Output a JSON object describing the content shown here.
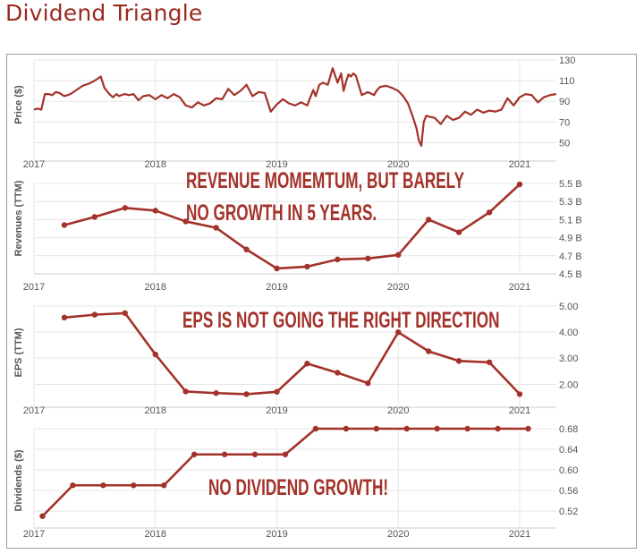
{
  "title": "Dividend Triangle",
  "colors": {
    "line": "#a3322a",
    "grid": "#e6e6e6",
    "axis": "#9a9a9a",
    "text": "#555555",
    "annotation": "#a3322a",
    "title": "#9a2a20"
  },
  "x_axis_ticks": [
    "2017",
    "2018",
    "2019",
    "2020",
    "2021"
  ],
  "chart_data": [
    {
      "type": "line",
      "ylabel": "Price ($)",
      "ylim": [
        40,
        130
      ],
      "yticks": [
        130,
        110,
        90,
        70,
        50
      ],
      "x": [
        2017.0,
        2017.03,
        2017.06,
        2017.09,
        2017.12,
        2017.15,
        2017.18,
        2017.21,
        2017.25,
        2017.3,
        2017.35,
        2017.4,
        2017.45,
        2017.5,
        2017.55,
        2017.58,
        2017.62,
        2017.65,
        2017.68,
        2017.7,
        2017.72,
        2017.75,
        2017.78,
        2017.82,
        2017.86,
        2017.9,
        2017.95,
        2018.0,
        2018.05,
        2018.1,
        2018.15,
        2018.2,
        2018.25,
        2018.3,
        2018.35,
        2018.4,
        2018.45,
        2018.5,
        2018.55,
        2018.6,
        2018.65,
        2018.7,
        2018.75,
        2018.8,
        2018.85,
        2018.9,
        2018.95,
        2019.0,
        2019.05,
        2019.1,
        2019.15,
        2019.2,
        2019.25,
        2019.3,
        2019.32,
        2019.35,
        2019.38,
        2019.42,
        2019.46,
        2019.5,
        2019.53,
        2019.55,
        2019.57,
        2019.59,
        2019.61,
        2019.63,
        2019.65,
        2019.7,
        2019.75,
        2019.8,
        2019.82,
        2019.85,
        2019.9,
        2019.95,
        2020.0,
        2020.04,
        2020.08,
        2020.12,
        2020.15,
        2020.17,
        2020.19,
        2020.21,
        2020.23,
        2020.26,
        2020.3,
        2020.35,
        2020.4,
        2020.45,
        2020.5,
        2020.55,
        2020.6,
        2020.65,
        2020.7,
        2020.75,
        2020.8,
        2020.85,
        2020.9,
        2020.95,
        2021.0,
        2021.05,
        2021.1,
        2021.15,
        2021.2,
        2021.25,
        2021.3
      ],
      "values": [
        82,
        83,
        82,
        97,
        97,
        96,
        99,
        98,
        95,
        97,
        101,
        105,
        107,
        110,
        114,
        103,
        97,
        94,
        97,
        95,
        96,
        97,
        96,
        97,
        91,
        95,
        96,
        92,
        96,
        93,
        97,
        94,
        86,
        84,
        89,
        86,
        88,
        93,
        92,
        102,
        96,
        100,
        106,
        95,
        99,
        98,
        80,
        87,
        92,
        88,
        86,
        89,
        86,
        101,
        95,
        106,
        108,
        106,
        122,
        108,
        117,
        100,
        109,
        116,
        114,
        117,
        115,
        96,
        99,
        96,
        100,
        104,
        105,
        103,
        100,
        95,
        88,
        75,
        64,
        52,
        47,
        70,
        76,
        75,
        74,
        68,
        76,
        72,
        74,
        80,
        77,
        82,
        79,
        81,
        80,
        82,
        93,
        86,
        94,
        97,
        96,
        89,
        94,
        96,
        97
      ]
    },
    {
      "type": "line",
      "ylabel": "Revenues (TTM)",
      "ylim": [
        4.5,
        5.5
      ],
      "yticks": [
        "5.5 B",
        "5.3 B",
        "5.1 B",
        "4.9 B",
        "4.7 B",
        "4.5 B"
      ],
      "x": [
        2017.25,
        2017.5,
        2017.75,
        2018.0,
        2018.25,
        2018.5,
        2018.75,
        2019.0,
        2019.25,
        2019.5,
        2019.75,
        2020.0,
        2020.25,
        2020.5,
        2020.75,
        2021.0
      ],
      "values": [
        5.04,
        5.13,
        5.23,
        5.2,
        5.08,
        5.01,
        4.77,
        4.56,
        4.58,
        4.66,
        4.67,
        4.71,
        5.1,
        4.96,
        5.18,
        5.49
      ]
    },
    {
      "type": "line",
      "ylabel": "EPS (TTM)",
      "ylim": [
        1.45,
        5.0
      ],
      "yticks": [
        "5.00",
        "4.00",
        "3.00",
        "2.00"
      ],
      "x": [
        2017.25,
        2017.5,
        2017.75,
        2018.0,
        2018.25,
        2018.5,
        2018.75,
        2019.0,
        2019.25,
        2019.5,
        2019.75,
        2020.0,
        2020.25,
        2020.5,
        2020.75,
        2021.0
      ],
      "values": [
        4.56,
        4.67,
        4.73,
        3.15,
        1.73,
        1.67,
        1.63,
        1.72,
        2.8,
        2.45,
        2.05,
        4.0,
        3.27,
        2.9,
        2.85,
        1.63
      ]
    },
    {
      "type": "line",
      "ylabel": "Dividends ($)",
      "ylim": [
        0.5,
        0.68
      ],
      "yticks": [
        "0.68",
        "0.64",
        "0.60",
        "0.56",
        "0.52"
      ],
      "x": [
        2017.07,
        2017.32,
        2017.57,
        2017.82,
        2018.07,
        2018.32,
        2018.57,
        2018.82,
        2019.07,
        2019.32,
        2019.57,
        2019.82,
        2020.07,
        2020.32,
        2020.57,
        2020.82,
        2021.07
      ],
      "values": [
        0.51,
        0.57,
        0.57,
        0.57,
        0.57,
        0.63,
        0.63,
        0.63,
        0.63,
        0.68,
        0.68,
        0.68,
        0.68,
        0.68,
        0.68,
        0.68,
        0.68
      ]
    }
  ],
  "annotations": [
    [
      "REVENUE MOMEMTUM, BUT BARELY",
      "NO GROWTH IN 5 YEARS."
    ],
    [
      "EPS IS NOT GOING THE RIGHT DIRECTION"
    ],
    [
      "NO DIVIDEND GROWTH!"
    ]
  ]
}
